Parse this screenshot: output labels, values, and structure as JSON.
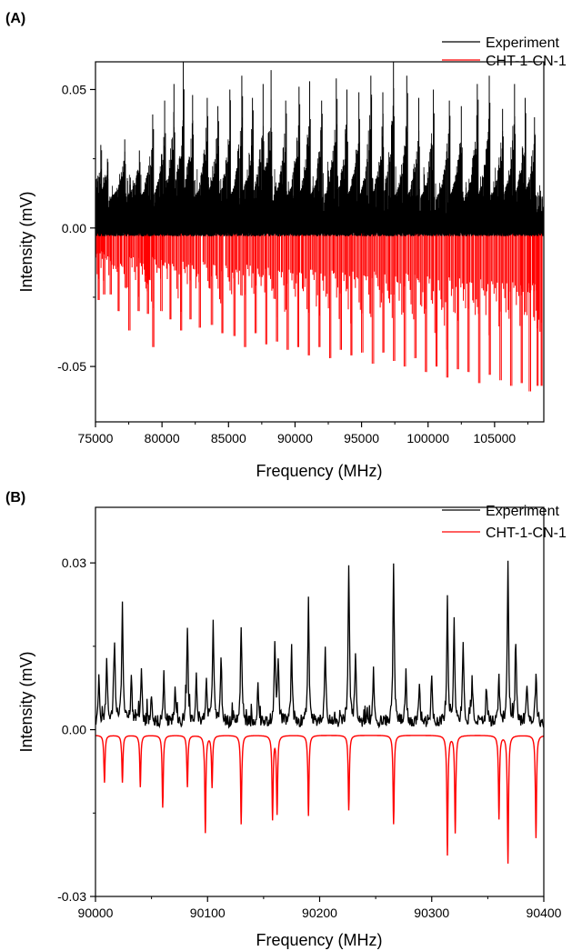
{
  "colors": {
    "experiment": "#000000",
    "simulation": "#ff0000",
    "axis": "#000000",
    "background": "#ffffff"
  },
  "chart_data": [
    {
      "panel": "(A)",
      "type": "line",
      "xlabel": "Frequency (MHz)",
      "ylabel": "Intensity (mV)",
      "xlim": [
        75000,
        108700
      ],
      "ylim": [
        -0.07,
        0.06
      ],
      "xticks": [
        75000,
        80000,
        85000,
        90000,
        95000,
        100000,
        105000
      ],
      "xtick_labels": [
        "75000",
        "80000",
        "85000",
        "90000",
        "95000",
        "100000",
        "105000"
      ],
      "yticks": [
        -0.05,
        0.0,
        0.05
      ],
      "ytick_labels": [
        "-0.05",
        "0.00",
        "0.05"
      ],
      "legend_position": "top-right",
      "series": [
        {
          "name": "Experiment",
          "style": "upward dense spectrum (stick lines from baseline 0)",
          "peaks_x": [
            75400,
            75900,
            77200,
            78300,
            79300,
            80200,
            80900,
            81600,
            82300,
            83400,
            84200,
            85100,
            86000,
            86800,
            87600,
            88200,
            89300,
            90300,
            91100,
            92000,
            93100,
            93900,
            94800,
            95700,
            96600,
            97400,
            98400,
            99300,
            100400,
            101600,
            102500,
            103700,
            104600,
            105600,
            106500,
            107300,
            108000
          ],
          "peaks_y": [
            0.03,
            0.025,
            0.032,
            0.028,
            0.041,
            0.046,
            0.052,
            0.06,
            0.048,
            0.047,
            0.044,
            0.05,
            0.055,
            0.047,
            0.052,
            0.057,
            0.046,
            0.051,
            0.053,
            0.046,
            0.054,
            0.05,
            0.049,
            0.055,
            0.049,
            0.06,
            0.055,
            0.047,
            0.05,
            0.046,
            0.044,
            0.052,
            0.055,
            0.043,
            0.052,
            0.047,
            0.04
          ]
        },
        {
          "name": "CHT-1-CN-1",
          "style": "downward stick spectrum from baseline 0",
          "x": [
            75200,
            75600,
            76100,
            76700,
            77500,
            78200,
            78900,
            79300,
            79900,
            80600,
            81400,
            82100,
            82800,
            83700,
            84500,
            85400,
            86200,
            87000,
            87800,
            88600,
            89400,
            90200,
            91000,
            91800,
            92600,
            93400,
            94200,
            95000,
            95800,
            96600,
            97400,
            98200,
            99000,
            99800,
            100600,
            101400,
            102200,
            103000,
            103800,
            104600,
            105400,
            106200,
            107000,
            107600,
            108200,
            108500
          ],
          "y": [
            -0.026,
            -0.024,
            -0.024,
            -0.03,
            -0.037,
            -0.03,
            -0.031,
            -0.043,
            -0.03,
            -0.033,
            -0.037,
            -0.033,
            -0.036,
            -0.035,
            -0.038,
            -0.039,
            -0.043,
            -0.038,
            -0.042,
            -0.041,
            -0.044,
            -0.043,
            -0.046,
            -0.043,
            -0.047,
            -0.044,
            -0.046,
            -0.045,
            -0.049,
            -0.045,
            -0.048,
            -0.05,
            -0.047,
            -0.052,
            -0.05,
            -0.054,
            -0.051,
            -0.052,
            -0.056,
            -0.053,
            -0.055,
            -0.057,
            -0.056,
            -0.059,
            -0.057,
            -0.057
          ]
        }
      ]
    },
    {
      "panel": "(B)",
      "type": "line",
      "xlabel": "Frequency (MHz)",
      "ylabel": "Intensity (mV)",
      "xlim": [
        90000,
        90400
      ],
      "ylim": [
        -0.03,
        0.04
      ],
      "xticks": [
        90000,
        90100,
        90200,
        90300,
        90400
      ],
      "xtick_labels": [
        "90000",
        "90100",
        "90200",
        "90300",
        "90400"
      ],
      "yticks": [
        -0.03,
        0.0,
        0.03
      ],
      "ytick_labels": [
        "-0.03",
        "0.00",
        "0.03"
      ],
      "legend_position": "top-right",
      "series": [
        {
          "name": "Experiment",
          "style": "noisy line spectrum above zero",
          "peaks_x": [
            90003,
            90010,
            90017,
            90024,
            90032,
            90041,
            90050,
            90061,
            90071,
            90082,
            90090,
            90099,
            90105,
            90112,
            90130,
            90145,
            90160,
            90163,
            90175,
            90190,
            90205,
            90226,
            90232,
            90248,
            90266,
            90277,
            90289,
            90300,
            90314,
            90320,
            90328,
            90336,
            90349,
            90360,
            90368,
            90375,
            90385,
            90393
          ],
          "peaks_y": [
            0.0075,
            0.012,
            0.015,
            0.0225,
            0.0085,
            0.0095,
            0.0055,
            0.0085,
            0.006,
            0.018,
            0.0095,
            0.0085,
            0.019,
            0.012,
            0.018,
            0.0065,
            0.015,
            0.0115,
            0.0135,
            0.023,
            0.013,
            0.028,
            0.012,
            0.009,
            0.028,
            0.0085,
            0.0075,
            0.0085,
            0.022,
            0.018,
            0.014,
            0.0075,
            0.0065,
            0.0085,
            0.028,
            0.0135,
            0.0075,
            0.0095
          ]
        },
        {
          "name": "CHT-1-CN-1",
          "style": "downward peaks from baseline -0.001",
          "x": [
            90008,
            90024,
            90040,
            90060,
            90082,
            90098,
            90104,
            90130,
            90158,
            90162,
            90190,
            90226,
            90266,
            90314,
            90321,
            90360,
            90368,
            90393
          ],
          "y": [
            -0.0095,
            -0.0095,
            -0.0103,
            -0.014,
            -0.0103,
            -0.0185,
            -0.0103,
            -0.017,
            -0.016,
            -0.015,
            -0.0155,
            -0.0145,
            -0.017,
            -0.0225,
            -0.0185,
            -0.016,
            -0.024,
            -0.0195
          ]
        }
      ]
    }
  ]
}
